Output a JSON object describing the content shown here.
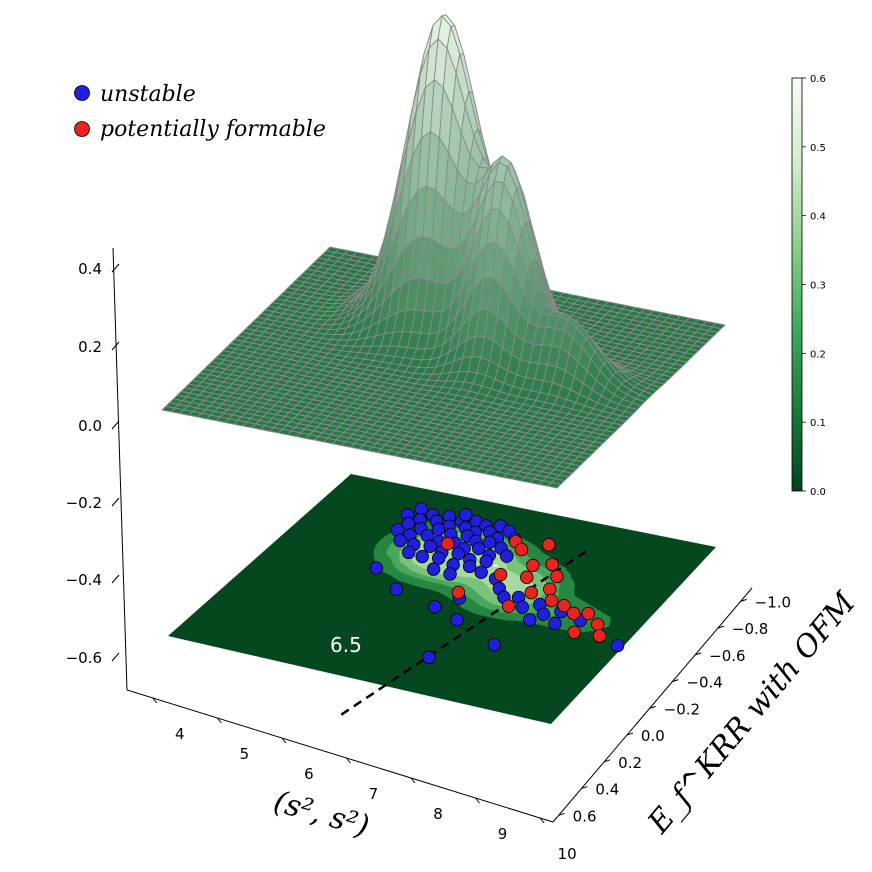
{
  "chart_data": {
    "type": "surface3d-with-kde-contour-scatter",
    "legend": [
      {
        "label": "unstable",
        "color": "#1f1fdc"
      },
      {
        "label": "potentially formable",
        "color": "#e8251c"
      }
    ],
    "x_axis": {
      "label": "(s², s²)",
      "ticks": [
        "4",
        "5",
        "6",
        "7",
        "8",
        "9",
        "10"
      ],
      "range": [
        3.6,
        10.2
      ]
    },
    "y_axis": {
      "label": "E_f^KRR with OFM",
      "ticks": [
        "0.6",
        "0.4",
        "0.2",
        "0.0",
        "−0.2",
        "−0.4",
        "−0.6",
        "−0.8",
        "−1.0"
      ],
      "range": [
        0.7,
        -1.15
      ]
    },
    "z_axis": {
      "ticks": [
        "0.4",
        "0.2",
        "0.0",
        "−0.2",
        "−0.4",
        "−0.6"
      ],
      "range": [
        -0.65,
        0.42
      ]
    },
    "colorbar": {
      "ticks": [
        "0.6",
        "0.5",
        "0.4",
        "0.3",
        "0.2",
        "0.1",
        "0.0"
      ],
      "range": [
        0.0,
        0.6
      ],
      "colormap": "Greens_r"
    },
    "annotation": {
      "text": "6.5",
      "x_value": 6.5
    },
    "surface_peaks": [
      {
        "x": 6.3,
        "y": -0.62,
        "height": 0.6
      },
      {
        "x": 7.6,
        "y": -0.45,
        "height": 0.35
      }
    ],
    "unstable_points": [
      [
        5.1,
        -0.98
      ],
      [
        5.35,
        -0.95
      ],
      [
        5.6,
        -0.97
      ],
      [
        5.85,
        -0.95
      ],
      [
        6.05,
        -0.98
      ],
      [
        6.25,
        -0.96
      ],
      [
        6.45,
        -0.99
      ],
      [
        6.65,
        -0.96
      ],
      [
        5.0,
        -0.9
      ],
      [
        5.25,
        -0.88
      ],
      [
        5.5,
        -0.9
      ],
      [
        5.75,
        -0.88
      ],
      [
        6.0,
        -0.9
      ],
      [
        6.2,
        -0.88
      ],
      [
        6.4,
        -0.91
      ],
      [
        6.6,
        -0.87
      ],
      [
        6.85,
        -0.9
      ],
      [
        5.15,
        -0.82
      ],
      [
        5.4,
        -0.8
      ],
      [
        5.65,
        -0.83
      ],
      [
        5.9,
        -0.81
      ],
      [
        6.15,
        -0.83
      ],
      [
        6.35,
        -0.8
      ],
      [
        6.55,
        -0.82
      ],
      [
        6.8,
        -0.79
      ],
      [
        5.1,
        -0.74
      ],
      [
        5.35,
        -0.72
      ],
      [
        5.6,
        -0.75
      ],
      [
        5.85,
        -0.72
      ],
      [
        6.1,
        -0.74
      ],
      [
        6.3,
        -0.71
      ],
      [
        6.5,
        -0.74
      ],
      [
        6.75,
        -0.7
      ],
      [
        7.0,
        -0.73
      ],
      [
        5.3,
        -0.65
      ],
      [
        5.55,
        -0.64
      ],
      [
        5.8,
        -0.66
      ],
      [
        6.05,
        -0.63
      ],
      [
        6.3,
        -0.65
      ],
      [
        6.55,
        -0.62
      ],
      [
        6.8,
        -0.64
      ],
      [
        5.6,
        -0.56
      ],
      [
        5.85,
        -0.55
      ],
      [
        6.1,
        -0.57
      ],
      [
        6.4,
        -0.54
      ],
      [
        6.65,
        -0.56
      ],
      [
        6.9,
        -0.53
      ],
      [
        6.2,
        -0.46
      ],
      [
        6.5,
        -0.45
      ],
      [
        7.2,
        -0.5
      ],
      [
        7.4,
        -0.42
      ],
      [
        7.6,
        -0.35
      ],
      [
        7.8,
        -0.38
      ],
      [
        8.0,
        -0.3
      ],
      [
        8.2,
        -0.36
      ],
      [
        8.4,
        -0.28
      ],
      [
        8.6,
        -0.34
      ],
      [
        8.3,
        -0.2
      ],
      [
        8.7,
        -0.22
      ],
      [
        9.0,
        -0.3
      ],
      [
        7.0,
        -0.25
      ],
      [
        6.8,
        -0.12
      ],
      [
        7.3,
        -0.05
      ],
      [
        5.4,
        -0.35
      ],
      [
        6.0,
        -0.2
      ],
      [
        9.9,
        -0.15
      ],
      [
        8.2,
        0.1
      ],
      [
        7.5,
        0.35
      ],
      [
        5.8,
        -1.02
      ]
    ],
    "formable_points": [
      [
        6.0,
        -0.72
      ],
      [
        6.9,
        -0.88
      ],
      [
        7.1,
        -0.82
      ],
      [
        7.4,
        -0.92
      ],
      [
        7.5,
        -0.7
      ],
      [
        7.75,
        -0.75
      ],
      [
        8.0,
        -0.65
      ],
      [
        7.2,
        -0.55
      ],
      [
        7.6,
        -0.58
      ],
      [
        7.9,
        -0.45
      ],
      [
        8.1,
        -0.52
      ],
      [
        8.3,
        -0.42
      ],
      [
        8.55,
        -0.4
      ],
      [
        8.8,
        -0.35
      ],
      [
        9.0,
        -0.38
      ],
      [
        9.3,
        -0.3
      ],
      [
        9.1,
        -0.18
      ],
      [
        9.5,
        -0.2
      ],
      [
        6.9,
        -0.3
      ],
      [
        7.8,
        -0.28
      ]
    ]
  }
}
